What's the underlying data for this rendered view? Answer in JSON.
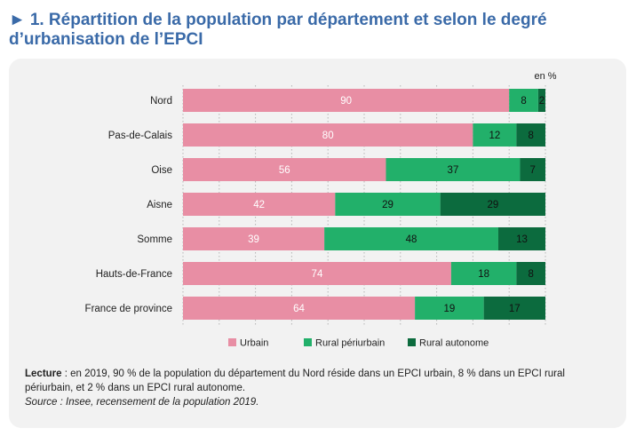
{
  "header": {
    "arrow": "►",
    "title": "1. Répartition de la population par département et selon le degré d’urbanisation de l’EPCI"
  },
  "chart_data": {
    "type": "bar",
    "orientation": "horizontal",
    "stacked": true,
    "unit_label": "en %",
    "categories": [
      "Nord",
      "Pas-de-Calais",
      "Oise",
      "Aisne",
      "Somme",
      "Hauts-de-France",
      "France de province"
    ],
    "series": [
      {
        "name": "Urbain",
        "color": "#e88ea4",
        "values": [
          90,
          80,
          56,
          42,
          39,
          74,
          64
        ]
      },
      {
        "name": "Rural périurbain",
        "color": "#22b06a",
        "values": [
          8,
          12,
          37,
          29,
          48,
          18,
          19
        ]
      },
      {
        "name": "Rural autonome",
        "color": "#0c6b3e",
        "values": [
          2,
          8,
          7,
          29,
          13,
          8,
          17
        ]
      }
    ],
    "xlim": [
      0,
      100
    ],
    "grid": true,
    "legend_position": "bottom"
  },
  "notes": {
    "lecture_label": "Lecture",
    "lecture_text": " : en 2019, 90 % de la population du département du Nord réside dans un EPCI urbain, 8 % dans un EPCI rural périurbain, et 2 % dans un EPCI rural autonome.",
    "source": "Source : Insee, recensement de la population 2019."
  }
}
